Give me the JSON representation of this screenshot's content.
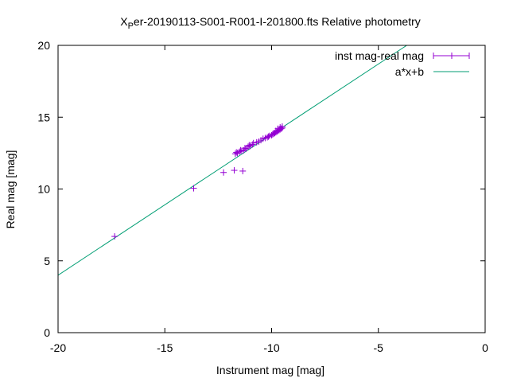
{
  "chart_data": {
    "type": "scatter",
    "title": "X_Per-20190113-S001-R001-I-201800.fts Relative photometry",
    "title_prefix": "X",
    "title_subscript": "P",
    "title_rest": "er-20190113-S001-R001-I-201800.fts Relative photometry",
    "xlabel": "Instrument mag [mag]",
    "ylabel": "Real mag [mag]",
    "xlim": [
      -20,
      0
    ],
    "ylim": [
      0,
      20
    ],
    "xticks": [
      -20,
      -15,
      -10,
      -5,
      0
    ],
    "yticks": [
      0,
      5,
      10,
      15,
      20
    ],
    "xtick_labels": [
      "-20",
      "-15",
      "-10",
      "-5",
      "0"
    ],
    "ytick_labels": [
      "0",
      "5",
      "10",
      "15",
      "20"
    ],
    "grid": false,
    "legend_position": "top-right",
    "series": [
      {
        "name": "inst mag-real mag",
        "type": "scatter",
        "color": "#9400d3",
        "marker": "plus",
        "x": [
          -17.35,
          -13.65,
          -12.25,
          -11.75,
          -11.35,
          -11.7,
          -11.6,
          -11.5,
          -11.4,
          -11.3,
          -11.2,
          -11.1,
          -11.0,
          -10.9,
          -10.7,
          -10.6,
          -10.5,
          -10.4,
          -10.3,
          -10.2,
          -10.1,
          -10.0,
          -9.95,
          -9.9,
          -9.85,
          -9.8,
          -9.75,
          -9.7,
          -9.65,
          -9.6,
          -9.55,
          -9.5,
          -9.5,
          -9.6,
          -9.7,
          -9.8,
          -11.65,
          -11.45,
          -11.25,
          -11.05,
          -10.85,
          -10.15
        ],
        "y": [
          6.7,
          10.05,
          11.15,
          11.3,
          11.25,
          12.45,
          12.5,
          12.6,
          12.65,
          12.7,
          12.8,
          12.95,
          13.0,
          13.1,
          13.25,
          13.3,
          13.4,
          13.5,
          13.55,
          13.6,
          13.7,
          13.75,
          13.8,
          13.85,
          13.9,
          13.95,
          14.0,
          14.05,
          14.1,
          14.15,
          14.2,
          14.25,
          14.35,
          14.3,
          14.2,
          14.05,
          12.55,
          12.7,
          12.85,
          13.05,
          13.2,
          13.65
        ]
      },
      {
        "name": "a*x+b",
        "type": "line",
        "color": "#009e73",
        "a": 0.98,
        "b": 23.6
      }
    ]
  }
}
